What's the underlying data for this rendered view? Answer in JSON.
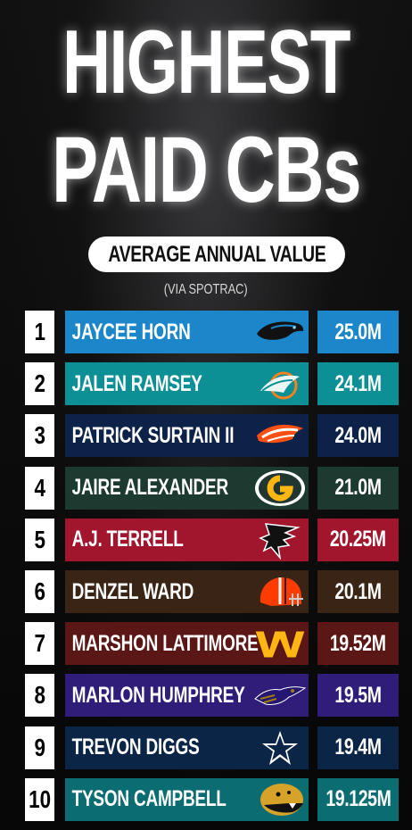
{
  "title_line1": "HIGHEST",
  "title_line2": "PAID CBs",
  "subtitle": "AVERAGE ANNUAL VALUE",
  "source": "(VIA SPOTRAC)",
  "players": [
    {
      "rank": "1",
      "name": "JAYCEE HORN",
      "value": "25.0M",
      "team_icon": "panthers-icon",
      "color": "#1b86c9"
    },
    {
      "rank": "2",
      "name": "JALEN RAMSEY",
      "value": "24.1M",
      "team_icon": "dolphins-icon",
      "color": "#0c8f95"
    },
    {
      "rank": "3",
      "name": "PATRICK SURTAIN II",
      "value": "24.0M",
      "team_icon": "broncos-icon",
      "color": "#0c2248"
    },
    {
      "rank": "4",
      "name": "JAIRE ALEXANDER",
      "value": "21.0M",
      "team_icon": "packers-icon",
      "color": "#1d3a30"
    },
    {
      "rank": "5",
      "name": "A.J. TERRELL",
      "value": "20.25M",
      "team_icon": "falcons-icon",
      "color": "#a1162d"
    },
    {
      "rank": "6",
      "name": "DENZEL WARD",
      "value": "20.1M",
      "team_icon": "browns-icon",
      "color": "#3a2415"
    },
    {
      "rank": "7",
      "name": "MARSHON LATTIMORE",
      "value": "19.52M",
      "team_icon": "commanders-icon",
      "color": "#5b1616"
    },
    {
      "rank": "8",
      "name": "MARLON HUMPHREY",
      "value": "19.5M",
      "team_icon": "ravens-icon",
      "color": "#2f1d79"
    },
    {
      "rank": "9",
      "name": "TREVON DIGGS",
      "value": "19.4M",
      "team_icon": "cowboys-icon",
      "color": "#0b2547"
    },
    {
      "rank": "10",
      "name": "TYSON CAMPBELL",
      "value": "19.125M",
      "team_icon": "jaguars-icon",
      "color": "#0b6c72"
    }
  ]
}
